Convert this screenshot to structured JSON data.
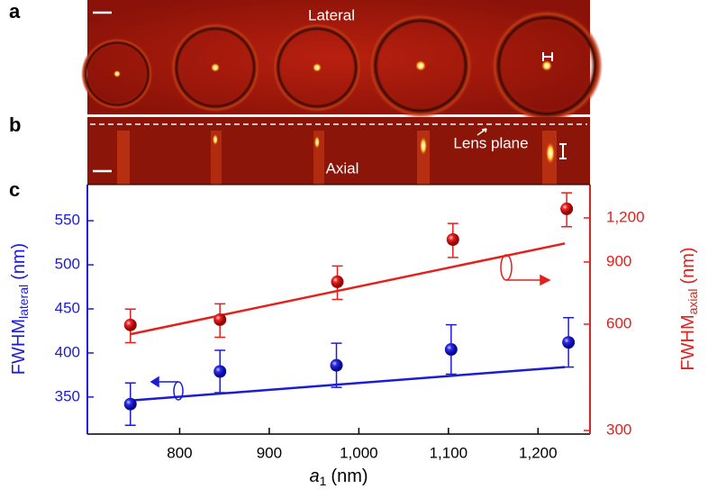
{
  "panels": {
    "a": {
      "label": "a",
      "title": "Lateral"
    },
    "b": {
      "label": "b",
      "title": "Axial",
      "annotation": "Lens plane"
    }
  },
  "chart_data": {
    "type": "scatter",
    "panel_label": "c",
    "xlabel": {
      "main": "a",
      "sub": "1",
      "unit": "(nm)"
    },
    "ylabel": {
      "main": "FWHM",
      "sub": "lateral",
      "unit": "(nm)"
    },
    "y2label": {
      "main": "FWHM",
      "sub": "axial",
      "unit": "(nm)"
    },
    "xlim": [
      697,
      1258
    ],
    "xticks": [
      800,
      900,
      {
        "value": 1000,
        "label": "1,000"
      },
      {
        "value": 1100,
        "label": "1,100"
      },
      {
        "value": 1200,
        "label": "1,200"
      }
    ],
    "ylim": [
      308,
      591
    ],
    "yticks": [
      350,
      400,
      450,
      500,
      550
    ],
    "ycolor": "#1c1cd6",
    "y2lim": [
      293,
      1491
    ],
    "y2scale": "log",
    "y2ticks": [
      300,
      600,
      900,
      {
        "value": 1200,
        "label": "1,200"
      }
    ],
    "y2color": "#e3201b",
    "series": [
      {
        "color": "#1c1cd6",
        "axis": "y",
        "x": [
          745,
          845,
          975,
          1103,
          1234
        ],
        "values": [
          342,
          379,
          386,
          404,
          412
        ],
        "errors": [
          24,
          24,
          25,
          28,
          28
        ],
        "fit_x": [
          745,
          1230
        ],
        "fit_values": [
          346,
          384
        ]
      },
      {
        "color": "#e3201b",
        "axis": "y2",
        "x": [
          745,
          845,
          976,
          1105,
          1232
        ],
        "values": [
          597,
          618,
          791,
          1042,
          1273
        ],
        "errors": [
          65,
          67,
          86,
          115,
          140
        ],
        "fit_x": [
          745,
          1230
        ],
        "fit_values": [
          562,
          1016
        ]
      }
    ]
  }
}
